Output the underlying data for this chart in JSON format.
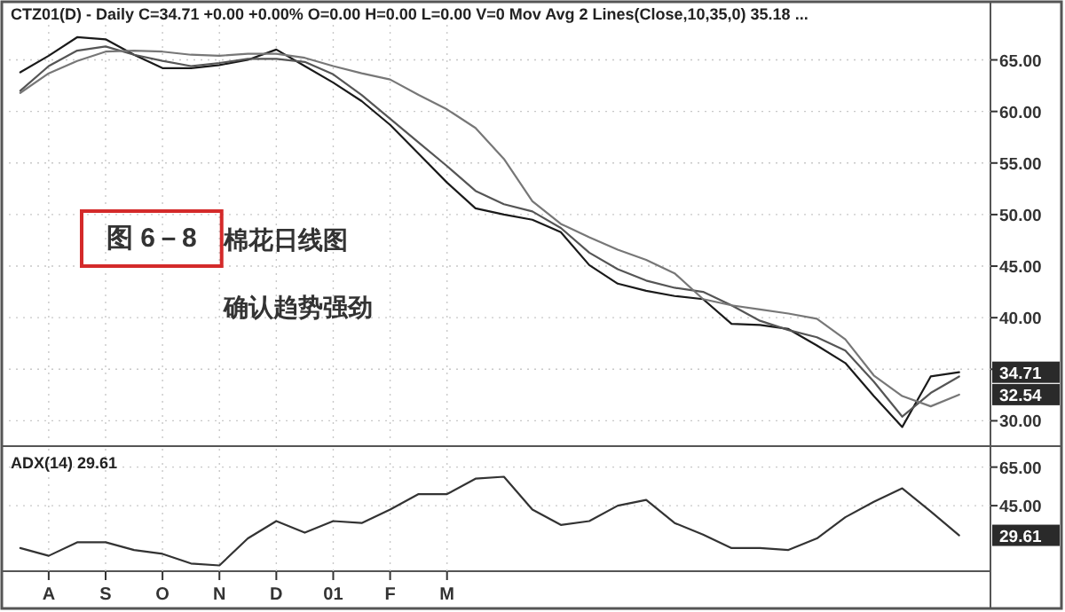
{
  "chart_data": [
    {
      "type": "line",
      "title": "CTZ01(D) - Daily C=34.71 +0.00 +0.00% O=0.00 H=0.00 L=0.00 V=0 Mov Avg 2 Lines(Close,10,35,0) 35.18 ...",
      "categories": [
        null,
        null,
        null,
        null,
        null,
        null,
        null,
        null,
        null,
        null,
        null,
        null,
        null,
        null,
        null,
        null,
        null,
        null,
        null,
        null,
        null,
        null,
        null,
        null,
        null,
        null,
        null,
        null,
        null,
        null,
        null,
        null,
        null,
        null
      ],
      "ylim": [
        27.8,
        68.4
      ],
      "yticks": [
        {
          "value": 30,
          "label": "30.00"
        },
        {
          "value": 35,
          "label": null
        },
        {
          "value": 40,
          "label": "40.00"
        },
        {
          "value": 45,
          "label": "45.00"
        },
        {
          "value": 50,
          "label": "50.00"
        },
        {
          "value": 55,
          "label": "55.00"
        },
        {
          "value": 60,
          "label": "60.00"
        },
        {
          "value": 65,
          "label": "65.00"
        }
      ],
      "grid": true,
      "tick_labels": "y",
      "series": [
        {
          "color": "#1a1a1a",
          "values": [
            63.8,
            65.4,
            67.2,
            67.0,
            65.5,
            64.2,
            64.2,
            64.5,
            65.0,
            66.0,
            64.4,
            62.8,
            61.0,
            58.7,
            55.9,
            53.1,
            50.6,
            50.0,
            49.5,
            48.3,
            45.1,
            43.3,
            42.6,
            42.1,
            41.8,
            39.4,
            39.3,
            38.9,
            37.3,
            35.6,
            32.4,
            29.4,
            34.3,
            34.71
          ]
        },
        {
          "color": "#555555",
          "values": [
            62.0,
            64.4,
            65.9,
            66.3,
            65.5,
            64.9,
            64.4,
            64.7,
            65.1,
            65.1,
            64.8,
            63.6,
            61.6,
            59.3,
            57.0,
            54.7,
            52.3,
            51.0,
            50.3,
            48.7,
            46.3,
            44.7,
            43.6,
            42.9,
            42.5,
            41.2,
            39.7,
            38.8,
            38.1,
            36.8,
            33.8,
            30.4,
            32.7,
            34.3
          ]
        },
        {
          "color": "#777777",
          "values": [
            61.8,
            63.7,
            64.9,
            65.8,
            65.9,
            65.8,
            65.5,
            65.4,
            65.6,
            65.6,
            65.2,
            64.4,
            63.7,
            63.1,
            61.6,
            60.2,
            58.4,
            55.4,
            51.3,
            49.1,
            47.8,
            46.6,
            45.6,
            44.3,
            41.8,
            41.2,
            40.8,
            40.4,
            39.9,
            37.9,
            34.4,
            32.4,
            31.4,
            32.54
          ]
        }
      ],
      "annotations": [
        "34.71",
        "32.54",
        "图 6－8",
        "棉花日线图",
        "确认趋势强劲"
      ]
    },
    {
      "type": "line",
      "title": "ADX(14) 29.61",
      "categories": [
        null,
        "A",
        null,
        "S",
        null,
        "O",
        null,
        "N",
        null,
        "D",
        null,
        "01",
        null,
        "F",
        null,
        "M",
        null,
        null,
        null,
        null,
        null,
        null,
        null,
        null,
        null,
        null,
        null,
        null,
        null,
        null,
        null,
        null,
        null,
        null
      ],
      "ylim": [
        11,
        74.5
      ],
      "yticks": [
        {
          "value": 45,
          "label": "45.00"
        },
        {
          "value": 65,
          "label": "65.00"
        }
      ],
      "grid": true,
      "series": [
        {
          "color": "#333333",
          "values": [
            23,
            19,
            26,
            26,
            22,
            20,
            15,
            14,
            28,
            37,
            31,
            37,
            36,
            43,
            51,
            51,
            59,
            60,
            43,
            35,
            37,
            45,
            48,
            36,
            30,
            23,
            23,
            22,
            28,
            39,
            47,
            54,
            42,
            29.61
          ]
        }
      ],
      "annotations": [
        "29.61"
      ]
    }
  ]
}
